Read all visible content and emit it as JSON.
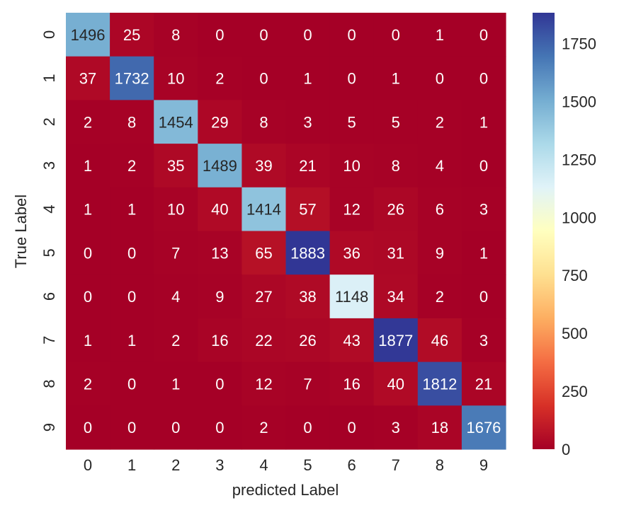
{
  "chart_data": {
    "type": "heatmap",
    "title": "",
    "xlabel": "predicted Label",
    "ylabel": "True Label",
    "x_categories": [
      "0",
      "1",
      "2",
      "3",
      "4",
      "5",
      "6",
      "7",
      "8",
      "9"
    ],
    "y_categories": [
      "0",
      "1",
      "2",
      "3",
      "4",
      "5",
      "6",
      "7",
      "8",
      "9"
    ],
    "values": [
      [
        1496,
        25,
        8,
        0,
        0,
        0,
        0,
        0,
        1,
        0
      ],
      [
        37,
        1732,
        10,
        2,
        0,
        1,
        0,
        1,
        0,
        0
      ],
      [
        2,
        8,
        1454,
        29,
        8,
        3,
        5,
        5,
        2,
        1
      ],
      [
        1,
        2,
        35,
        1489,
        39,
        21,
        10,
        8,
        4,
        0
      ],
      [
        1,
        1,
        10,
        40,
        1414,
        57,
        12,
        26,
        6,
        3
      ],
      [
        0,
        0,
        7,
        13,
        65,
        1883,
        36,
        31,
        9,
        1
      ],
      [
        0,
        0,
        4,
        9,
        27,
        38,
        1148,
        34,
        2,
        0
      ],
      [
        1,
        1,
        2,
        16,
        22,
        26,
        43,
        1877,
        46,
        3
      ],
      [
        2,
        0,
        1,
        0,
        12,
        7,
        16,
        40,
        1812,
        21
      ],
      [
        0,
        0,
        0,
        0,
        2,
        0,
        0,
        3,
        18,
        1676
      ]
    ],
    "colormap": "RdYlBu",
    "vmin": 0,
    "vmax": 1883,
    "colorbar_ticks": [
      0,
      250,
      500,
      750,
      1000,
      1250,
      1500,
      1750
    ],
    "grid": false
  }
}
